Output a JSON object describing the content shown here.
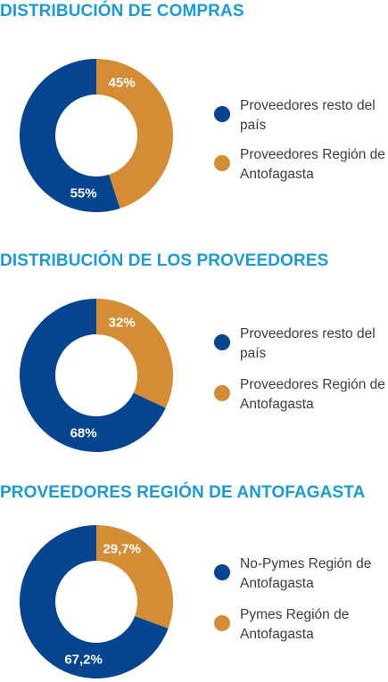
{
  "chart_data": [
    {
      "type": "pie",
      "title": "DISTRIBUCIÓN DE COMPRAS",
      "categories": [
        "Proveedores resto del país",
        "Proveedores Región de Antofagasta"
      ],
      "values": [
        55,
        45
      ],
      "value_labels": [
        "55%",
        "45%"
      ],
      "legend": "right"
    },
    {
      "type": "pie",
      "title": "DISTRIBUCIÓN DE LOS PROVEEDORES",
      "categories": [
        "Proveedores resto del país",
        "Proveedores Región de Antofagasta"
      ],
      "values": [
        68,
        32
      ],
      "value_labels": [
        "68%",
        "32%"
      ],
      "legend": "right"
    },
    {
      "type": "pie",
      "title": "PROVEEDORES REGIÓN DE ANTOFAGASTA",
      "categories": [
        "No-Pymes Región de Antofagasta",
        "Pymes Región de Antofagasta"
      ],
      "values": [
        67.2,
        29.7
      ],
      "value_labels": [
        "67,2%",
        "29,7%"
      ],
      "legend": "right"
    }
  ],
  "colors": {
    "blue": "#05448f",
    "orange": "#d58d35",
    "title": "#1b9ad6"
  }
}
